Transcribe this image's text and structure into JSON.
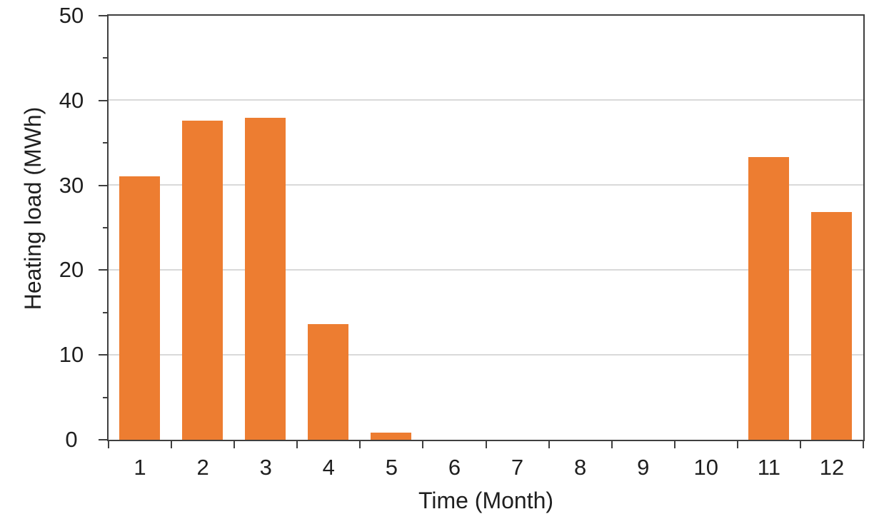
{
  "chart_data": {
    "type": "bar",
    "title": "",
    "xlabel": "Time (Month)",
    "ylabel": "Heating load (MWh)",
    "categories": [
      "1",
      "2",
      "3",
      "4",
      "5",
      "6",
      "7",
      "8",
      "9",
      "10",
      "11",
      "12"
    ],
    "values": [
      31.0,
      37.6,
      37.9,
      13.6,
      0.8,
      0,
      0,
      0,
      0,
      0,
      33.3,
      26.8
    ],
    "ylim": [
      0,
      50
    ],
    "yticks": [
      0,
      10,
      20,
      30,
      40,
      50
    ],
    "y_minor_step": 5,
    "grid": true,
    "legend": "none",
    "bar_width_fraction": 0.65,
    "colors": {
      "bar": "#ED7D31",
      "gridline": "#D9D9D9",
      "axis": "#3F3F3F",
      "text": "#1F1F1F",
      "background": "#FFFFFF"
    }
  }
}
